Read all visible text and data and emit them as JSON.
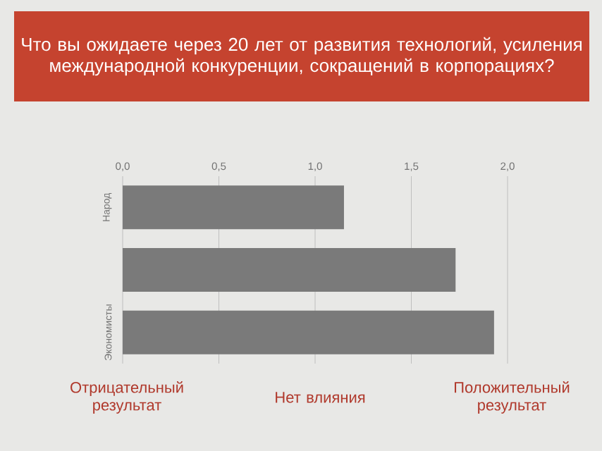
{
  "chart_data": {
    "type": "bar",
    "orientation": "horizontal",
    "title": "Что вы ожидаете через 20 лет от развития технологий, усиления международной конкуренции, сокращений в корпорациях?",
    "categories": [
      "Народ",
      null,
      "Экономисты"
    ],
    "values": [
      1.15,
      1.73,
      1.93
    ],
    "color": "#7a7a7a",
    "xlim": [
      0,
      2.0
    ],
    "xticks": [
      {
        "value": 0,
        "label": "0,0"
      },
      {
        "value": 0.5,
        "label": "0,5"
      },
      {
        "value": 1.0,
        "label": "1,0"
      },
      {
        "value": 1.5,
        "label": "1,5"
      },
      {
        "value": 2.0,
        "label": "2,0"
      }
    ],
    "grid": "x",
    "annotations": [
      "Отрицательный результат",
      "Нет влияния",
      "Положительный результат"
    ]
  }
}
